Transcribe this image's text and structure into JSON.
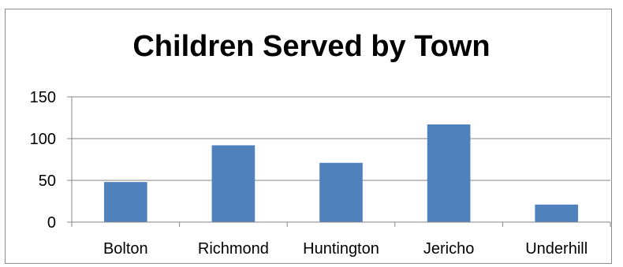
{
  "chart_data": {
    "type": "bar",
    "title": "Children Served by Town",
    "xlabel": "",
    "ylabel": "",
    "categories": [
      "Bolton",
      "Richmond",
      "Huntington",
      "Jericho",
      "Underhill"
    ],
    "values": [
      48,
      92,
      71,
      117,
      21
    ],
    "ylim": [
      0,
      150
    ],
    "yticks": [
      0,
      50,
      100,
      150
    ],
    "grid": true,
    "legend": "none",
    "bar_color": "#4f81bd",
    "grid_color": "#868686"
  }
}
